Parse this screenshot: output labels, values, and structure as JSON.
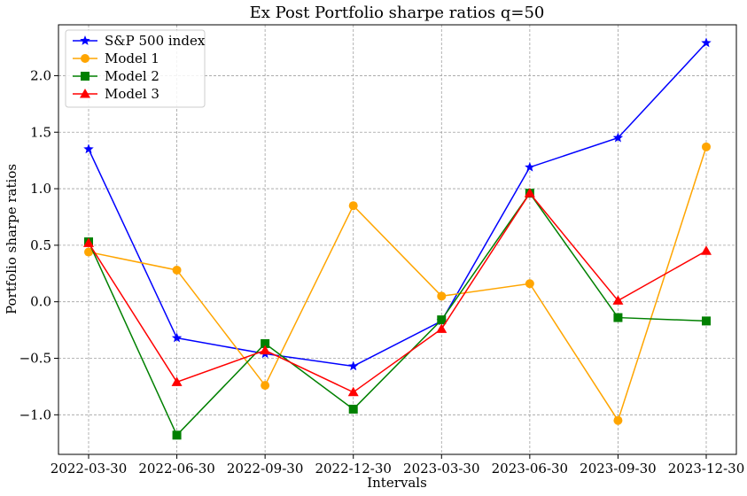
{
  "chart_data": {
    "type": "line",
    "title": "Ex Post Portfolio sharpe ratios q=50",
    "xlabel": "Intervals",
    "ylabel": "Portfolio sharpe ratios",
    "categories": [
      "2022-03-30",
      "2022-06-30",
      "2022-09-30",
      "2022-12-30",
      "2023-03-30",
      "2023-06-30",
      "2023-09-30",
      "2023-12-30"
    ],
    "ylim": [
      -1.35,
      2.45
    ],
    "yticks": [
      -1.0,
      -0.5,
      0.0,
      0.5,
      1.0,
      1.5,
      2.0
    ],
    "ytick_labels": [
      "−1.0",
      "−0.5",
      "0.0",
      "0.5",
      "1.0",
      "1.5",
      "2.0"
    ],
    "grid": true,
    "grid_style": "dashed",
    "legend_position": "top-left",
    "series": [
      {
        "name": "S&P 500 index",
        "color": "#0000ff",
        "marker": "star",
        "values": [
          1.35,
          -0.32,
          -0.46,
          -0.57,
          -0.17,
          1.19,
          1.45,
          2.29
        ]
      },
      {
        "name": "Model 1",
        "color": "#ffa500",
        "marker": "circle",
        "values": [
          0.44,
          0.28,
          -0.74,
          0.85,
          0.05,
          0.16,
          -1.05,
          1.37
        ]
      },
      {
        "name": "Model 2",
        "color": "#008000",
        "marker": "square",
        "values": [
          0.53,
          -1.18,
          -0.37,
          -0.95,
          -0.16,
          0.96,
          -0.14,
          -0.17
        ]
      },
      {
        "name": "Model 3",
        "color": "#ff0000",
        "marker": "triangle",
        "values": [
          0.52,
          -0.71,
          -0.43,
          -0.8,
          -0.24,
          0.96,
          0.01,
          0.45
        ]
      }
    ]
  }
}
